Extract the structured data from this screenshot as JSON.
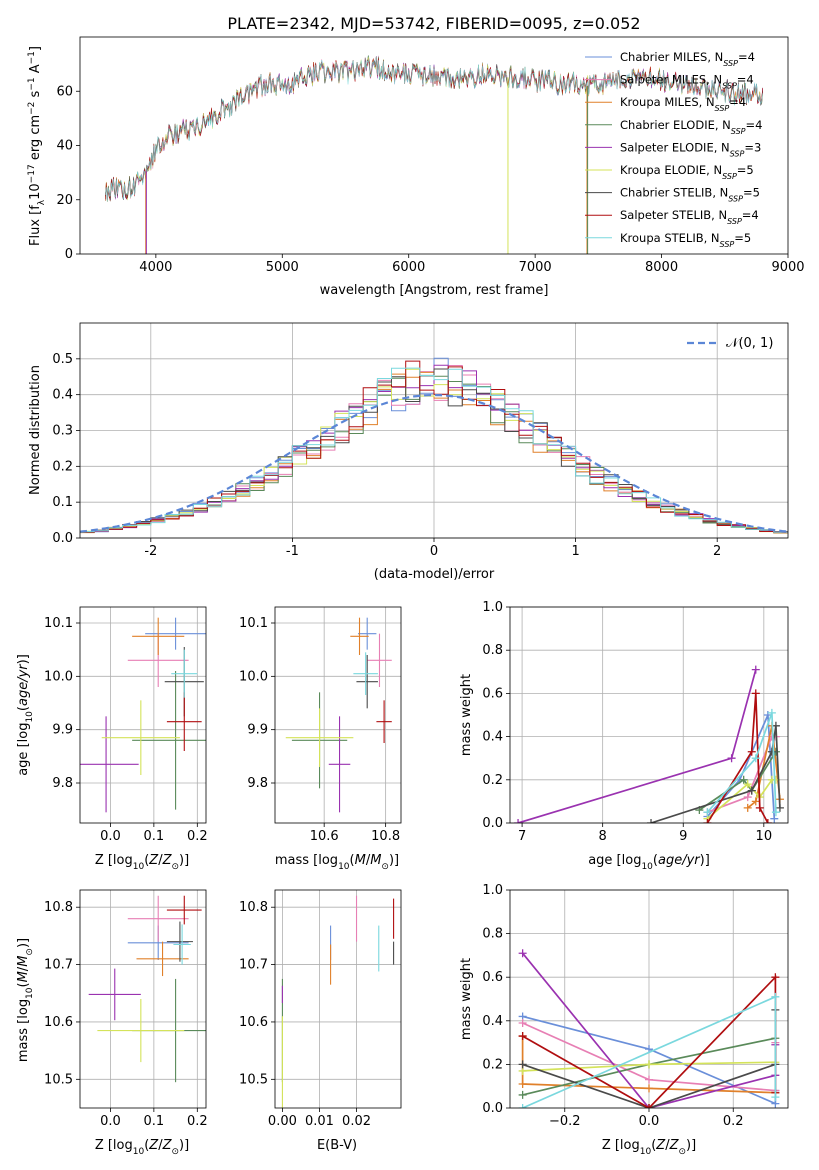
{
  "figure": {
    "title": "PLATE=2342, MJD=53742, FIBERID=0095, z=0.052"
  },
  "colors": [
    "#6a8fd9",
    "#e77fb4",
    "#e0802a",
    "#5a8a5a",
    "#9a32b0",
    "#d4e35a",
    "#4a4a4a",
    "#b00e10",
    "#7ad8de"
  ],
  "chart_data": [
    {
      "id": "spectrum",
      "type": "line",
      "xlabel": "wavelength [Angstrom, rest frame]",
      "ylabel": "Flux [f_λ10^-17 erg cm^-2 s^-1 A^-1]",
      "xlim": [
        3400,
        9000
      ],
      "ylim": [
        0,
        80
      ],
      "xticks": [
        4000,
        5000,
        6000,
        7000,
        8000,
        9000
      ],
      "yticks": [
        0,
        20,
        40,
        60
      ],
      "grid": false,
      "legend_position": "right",
      "series": [
        {
          "name": "Chabrier MILES, N_SSP=4"
        },
        {
          "name": "Salpeter MILES, N_SSP=4"
        },
        {
          "name": "Kroupa MILES, N_SSP=4"
        },
        {
          "name": "Chabrier ELODIE, N_SSP=4"
        },
        {
          "name": "Salpeter ELODIE, N_SSP=3"
        },
        {
          "name": "Kroupa ELODIE, N_SSP=5"
        },
        {
          "name": "Chabrier STELIB, N_SSP=5"
        },
        {
          "name": "Salpeter STELIB, N_SSP=4"
        },
        {
          "name": "Kroupa STELIB, N_SSP=5"
        }
      ],
      "continuum": {
        "x": [
          3600,
          3700,
          3800,
          3900,
          3950,
          4000,
          4100,
          4200,
          4300,
          4400,
          4500,
          4600,
          4700,
          4800,
          4900,
          5000,
          5100,
          5200,
          5300,
          5400,
          5500,
          5600,
          5700,
          5800,
          5900,
          6000,
          6100,
          6200,
          6300,
          6400,
          6500,
          6600,
          6700,
          6800,
          6900,
          7000,
          7100,
          7200,
          7300,
          7400,
          7500,
          7600,
          7700,
          7800,
          7900,
          8000,
          8100,
          8200,
          8300,
          8400,
          8500,
          8600,
          8700,
          8800
        ],
        "y": [
          22,
          25,
          24,
          28,
          33,
          39,
          43,
          46,
          46,
          49,
          52,
          55,
          59,
          61,
          63,
          62,
          63,
          66,
          67,
          68,
          67,
          68,
          69,
          68,
          67,
          66,
          66,
          66,
          66,
          64,
          65,
          67,
          66,
          65,
          65,
          64,
          64,
          62,
          63,
          62,
          62,
          63,
          64,
          65,
          65,
          64,
          63,
          62,
          61,
          61,
          60,
          59,
          59,
          59
        ]
      },
      "drops": [
        {
          "x": 3920,
          "series": 2
        },
        {
          "x": 3925,
          "series": 4
        },
        {
          "x": 6785,
          "series": 5
        },
        {
          "x": 7410,
          "series": 2
        },
        {
          "x": 7415,
          "series": 3
        }
      ]
    },
    {
      "id": "residuals",
      "type": "step-histogram",
      "xlabel": "(data-model)/error",
      "ylabel": "Normed distribution",
      "xlim": [
        -2.5,
        2.5
      ],
      "ylim": [
        0,
        0.6
      ],
      "xticks": [
        -2,
        -1,
        0,
        1,
        2
      ],
      "yticks": [
        0.0,
        0.1,
        0.2,
        0.3,
        0.4,
        0.5
      ],
      "grid": true,
      "legend": "N(0,1)",
      "legend_position": "top-right",
      "bins": {
        "start": -2.5,
        "width": 0.1,
        "count": 50
      },
      "gaussian": {
        "mu": 0,
        "sigma": 1
      }
    },
    {
      "id": "Z-age",
      "type": "errorbar",
      "xlabel": "Z [log10(Z/Z⊙)]",
      "ylabel": "age [log10(age/yr)]",
      "xlim": [
        -0.07,
        0.22
      ],
      "ylim": [
        9.725,
        10.13
      ],
      "xticks": [
        0.0,
        0.1,
        0.2
      ],
      "yticks": [
        9.8,
        9.9,
        10.0,
        10.1
      ],
      "grid": true,
      "points": [
        {
          "x": 0.15,
          "y": 10.08,
          "xerr": 0.07,
          "yerr": 0.03,
          "c": 0
        },
        {
          "x": 0.11,
          "y": 10.03,
          "xerr": 0.07,
          "yerr": 0.05,
          "c": 1
        },
        {
          "x": 0.11,
          "y": 10.075,
          "xerr": 0.06,
          "yerr": 0.035,
          "c": 2
        },
        {
          "x": 0.15,
          "y": 9.88,
          "xerr": 0.1,
          "yerr": 0.13,
          "c": 3
        },
        {
          "x": -0.01,
          "y": 9.835,
          "xerr": 0.075,
          "yerr": 0.09,
          "c": 4
        },
        {
          "x": 0.07,
          "y": 9.885,
          "xerr": 0.09,
          "yerr": 0.07,
          "c": 5
        },
        {
          "x": 0.17,
          "y": 9.99,
          "xerr": 0.045,
          "yerr": 0.065,
          "c": 6
        },
        {
          "x": 0.17,
          "y": 9.915,
          "xerr": 0.04,
          "yerr": 0.055,
          "c": 7
        },
        {
          "x": 0.17,
          "y": 10.005,
          "xerr": 0.03,
          "yerr": 0.045,
          "c": 8
        }
      ]
    },
    {
      "id": "mass-age",
      "type": "errorbar",
      "xlabel": "mass [log10(M/M⊙)]",
      "ylabel": "",
      "xlim": [
        10.44,
        10.85
      ],
      "ylim": [
        9.725,
        10.13
      ],
      "xticks": [
        10.6,
        10.8
      ],
      "yticks": [
        9.8,
        9.9,
        10.0,
        10.1
      ],
      "grid": true,
      "points": [
        {
          "x": 10.74,
          "y": 10.08,
          "xerr": 0.03,
          "yerr": 0.03,
          "c": 0
        },
        {
          "x": 10.78,
          "y": 10.03,
          "xerr": 0.04,
          "yerr": 0.05,
          "c": 1
        },
        {
          "x": 10.715,
          "y": 10.075,
          "xerr": 0.03,
          "yerr": 0.035,
          "c": 2
        },
        {
          "x": 10.585,
          "y": 9.88,
          "xerr": 0.09,
          "yerr": 0.09,
          "c": 3
        },
        {
          "x": 10.65,
          "y": 9.835,
          "xerr": 0.035,
          "yerr": 0.09,
          "c": 4
        },
        {
          "x": 10.585,
          "y": 9.885,
          "xerr": 0.11,
          "yerr": 0.055,
          "c": 5
        },
        {
          "x": 10.74,
          "y": 9.99,
          "xerr": 0.035,
          "yerr": 0.05,
          "c": 6
        },
        {
          "x": 10.795,
          "y": 9.915,
          "xerr": 0.025,
          "yerr": 0.04,
          "c": 7
        },
        {
          "x": 10.735,
          "y": 10.005,
          "xerr": 0.04,
          "yerr": 0.04,
          "c": 8
        }
      ]
    },
    {
      "id": "age-weight",
      "type": "line",
      "xlabel": "age [log10(age/yr)]",
      "ylabel": "mass weight",
      "xlim": [
        6.85,
        10.3
      ],
      "ylim": [
        0,
        1
      ],
      "xticks": [
        7,
        8,
        9,
        10
      ],
      "yticks": [
        0.0,
        0.2,
        0.4,
        0.6,
        0.8,
        1.0
      ],
      "grid": true,
      "series": [
        {
          "c": 0,
          "x": [
            9.3,
            9.7,
            10.05,
            10.13
          ],
          "y": [
            0.03,
            0.2,
            0.5,
            0.02
          ]
        },
        {
          "c": 1,
          "x": [
            9.3,
            9.8,
            10.1,
            10.15
          ],
          "y": [
            0.05,
            0.12,
            0.4,
            0.4
          ]
        },
        {
          "c": 2,
          "x": [
            9.8,
            9.9,
            10.1,
            10.2
          ],
          "y": [
            0.07,
            0.1,
            0.45,
            0.11
          ]
        },
        {
          "c": 3,
          "x": [
            9.2,
            9.75,
            9.85,
            10.15
          ],
          "y": [
            0.06,
            0.2,
            0.15,
            0.33
          ]
        },
        {
          "c": 4,
          "x": [
            6.95,
            9.6,
            9.9
          ],
          "y": [
            0.0,
            0.3,
            0.71
          ]
        },
        {
          "c": 5,
          "x": [
            9.3,
            9.8,
            9.95,
            10.1,
            10.15
          ],
          "y": [
            0.02,
            0.18,
            0.12,
            0.2,
            0.2
          ]
        },
        {
          "c": 6,
          "x": [
            8.6,
            9.85,
            10.1,
            10.15,
            10.2
          ],
          "y": [
            0.0,
            0.15,
            0.33,
            0.45,
            0.07
          ]
        },
        {
          "c": 7,
          "x": [
            9.3,
            9.85,
            9.9,
            9.95,
            10.05
          ],
          "y": [
            0.0,
            0.33,
            0.6,
            0.07,
            0.0
          ]
        },
        {
          "c": 8,
          "x": [
            9.3,
            9.9,
            10.1,
            10.15
          ],
          "y": [
            0.05,
            0.3,
            0.51,
            0.05
          ]
        }
      ]
    },
    {
      "id": "Z-mass",
      "type": "errorbar",
      "xlabel": "Z [log10(Z/Z⊙)]",
      "ylabel": "mass [log10(M/M⊙)]",
      "xlim": [
        -0.07,
        0.22
      ],
      "ylim": [
        10.45,
        10.83
      ],
      "xticks": [
        0.0,
        0.1,
        0.2
      ],
      "yticks": [
        10.5,
        10.6,
        10.7,
        10.8
      ],
      "grid": true,
      "points": [
        {
          "x": 0.11,
          "y": 10.738,
          "xerr": 0.07,
          "yerr": 0.03,
          "c": 0
        },
        {
          "x": 0.11,
          "y": 10.78,
          "xerr": 0.07,
          "yerr": 0.04,
          "c": 1
        },
        {
          "x": 0.12,
          "y": 10.71,
          "xerr": 0.06,
          "yerr": 0.03,
          "c": 2
        },
        {
          "x": 0.15,
          "y": 10.585,
          "xerr": 0.1,
          "yerr": 0.09,
          "c": 3
        },
        {
          "x": 0.01,
          "y": 10.648,
          "xerr": 0.06,
          "yerr": 0.045,
          "c": 4
        },
        {
          "x": 0.07,
          "y": 10.585,
          "xerr": 0.1,
          "yerr": 0.055,
          "c": 5
        },
        {
          "x": 0.16,
          "y": 10.74,
          "xerr": 0.03,
          "yerr": 0.035,
          "c": 6
        },
        {
          "x": 0.17,
          "y": 10.795,
          "xerr": 0.04,
          "yerr": 0.025,
          "c": 7
        },
        {
          "x": 0.165,
          "y": 10.735,
          "xerr": 0.02,
          "yerr": 0.035,
          "c": 8
        }
      ]
    },
    {
      "id": "ebv-mass",
      "type": "errorbar",
      "xlabel": "E(B-V)",
      "ylabel": "",
      "xlim": [
        -0.002,
        0.032
      ],
      "ylim": [
        10.45,
        10.83
      ],
      "xticks": [
        0.0,
        0.01,
        0.02
      ],
      "yticks": [
        10.5,
        10.6,
        10.7,
        10.8
      ],
      "grid": true,
      "points": [
        {
          "x": 0.013,
          "y": 10.738,
          "xerr": 0,
          "yerr": 0.03,
          "c": 0
        },
        {
          "x": 0.02,
          "y": 10.78,
          "xerr": 0,
          "yerr": 0.04,
          "c": 1
        },
        {
          "x": 0.013,
          "y": 10.7,
          "xerr": 0,
          "yerr": 0.035,
          "c": 2
        },
        {
          "x": 0.0,
          "y": 10.585,
          "xerr": 0,
          "yerr": 0.09,
          "c": 3
        },
        {
          "x": 0.0,
          "y": 10.648,
          "xerr": 0,
          "yerr": 0.015,
          "c": 4
        },
        {
          "x": 0.0,
          "y": 10.53,
          "xerr": 0,
          "yerr": 0.08,
          "c": 5
        },
        {
          "x": 0.03,
          "y": 10.72,
          "xerr": 0,
          "yerr": 0.02,
          "c": 6
        },
        {
          "x": 0.03,
          "y": 10.78,
          "xerr": 0,
          "yerr": 0.035,
          "c": 7
        },
        {
          "x": 0.026,
          "y": 10.728,
          "xerr": 0,
          "yerr": 0.04,
          "c": 8
        }
      ]
    },
    {
      "id": "Z-weight",
      "type": "line",
      "xlabel": "Z [log10(Z/Z⊙)]",
      "ylabel": "mass weight",
      "xlim": [
        -0.33,
        0.33
      ],
      "ylim": [
        0,
        1
      ],
      "xticks": [
        -0.2,
        0.0,
        0.2
      ],
      "yticks": [
        0.0,
        0.2,
        0.4,
        0.6,
        0.8,
        1.0
      ],
      "grid": true,
      "series": [
        {
          "c": 0,
          "x": [
            -0.3,
            0.0,
            0.3,
            0.3
          ],
          "y": [
            0.42,
            0.27,
            0.02,
            0.08
          ]
        },
        {
          "c": 1,
          "x": [
            -0.3,
            0.0,
            0.3,
            0.3
          ],
          "y": [
            0.39,
            0.13,
            0.08,
            0.3
          ]
        },
        {
          "c": 2,
          "x": [
            -0.3,
            -0.3,
            0.0,
            0.3
          ],
          "y": [
            0.33,
            0.11,
            0.09,
            0.07
          ]
        },
        {
          "c": 3,
          "x": [
            -0.3,
            0.0,
            0.3
          ],
          "y": [
            0.06,
            0.2,
            0.32
          ]
        },
        {
          "c": 4,
          "x": [
            -0.3,
            0.0,
            0.3,
            0.3
          ],
          "y": [
            0.71,
            0.0,
            0.15,
            0.29
          ]
        },
        {
          "c": 5,
          "x": [
            -0.3,
            0.0,
            0.3
          ],
          "y": [
            0.17,
            0.2,
            0.21
          ]
        },
        {
          "c": 6,
          "x": [
            -0.3,
            0.0,
            0.3,
            0.3
          ],
          "y": [
            0.2,
            0.0,
            0.2,
            0.45
          ]
        },
        {
          "c": 7,
          "x": [
            -0.3,
            0.0,
            0.3,
            0.3
          ],
          "y": [
            0.33,
            0.0,
            0.6,
            0.07
          ]
        },
        {
          "c": 8,
          "x": [
            -0.3,
            0.3,
            0.3
          ],
          "y": [
            0.0,
            0.51,
            0.05
          ]
        }
      ]
    }
  ]
}
